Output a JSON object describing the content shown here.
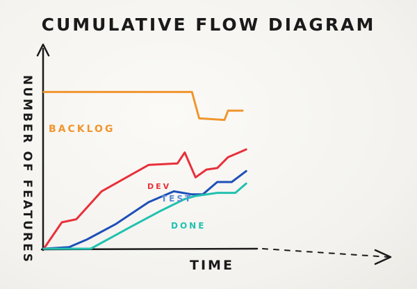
{
  "chart_data": {
    "type": "line",
    "title": "CUMULATIVE FLOW DIAGRAM",
    "xlabel": "TIME",
    "ylabel": "NUMBER OF FEATURES",
    "grid": false,
    "legend": "inline",
    "xlim": [
      0,
      30
    ],
    "ylim": [
      0,
      12
    ],
    "series": [
      {
        "name": "BACKLOG",
        "color": "#f0962e",
        "points": [
          [
            0,
            10.1
          ],
          [
            20.5,
            10.1
          ],
          [
            21.5,
            8.4
          ],
          [
            25,
            8.3
          ],
          [
            25.5,
            8.9
          ],
          [
            27.5,
            8.9
          ]
        ]
      },
      {
        "name": "DEV",
        "color": "#e8303a",
        "points": [
          [
            0,
            0
          ],
          [
            2.5,
            1.7
          ],
          [
            4.5,
            1.9
          ],
          [
            8,
            3.7
          ],
          [
            14.5,
            5.4
          ],
          [
            18.5,
            5.5
          ],
          [
            19.5,
            6.2
          ],
          [
            21,
            4.6
          ],
          [
            22.5,
            5.1
          ],
          [
            24,
            5.2
          ],
          [
            25.5,
            5.9
          ],
          [
            28,
            6.4
          ]
        ]
      },
      {
        "name": "TEST",
        "color": "#1d4fb8",
        "points": [
          [
            0,
            0
          ],
          [
            3.5,
            0.1
          ],
          [
            6,
            0.6
          ],
          [
            10,
            1.6
          ],
          [
            14.5,
            3.0
          ],
          [
            18,
            3.7
          ],
          [
            20.5,
            3.5
          ],
          [
            22,
            3.5
          ],
          [
            24,
            4.3
          ],
          [
            26,
            4.3
          ],
          [
            28,
            5.0
          ]
        ]
      },
      {
        "name": "DONE",
        "color": "#22c1b0",
        "points": [
          [
            0,
            0
          ],
          [
            6.5,
            0
          ],
          [
            12,
            1.4
          ],
          [
            16,
            2.4
          ],
          [
            19.5,
            3.2
          ],
          [
            21,
            3.4
          ],
          [
            24,
            3.6
          ],
          [
            26.5,
            3.6
          ],
          [
            28,
            4.2
          ]
        ]
      }
    ]
  }
}
